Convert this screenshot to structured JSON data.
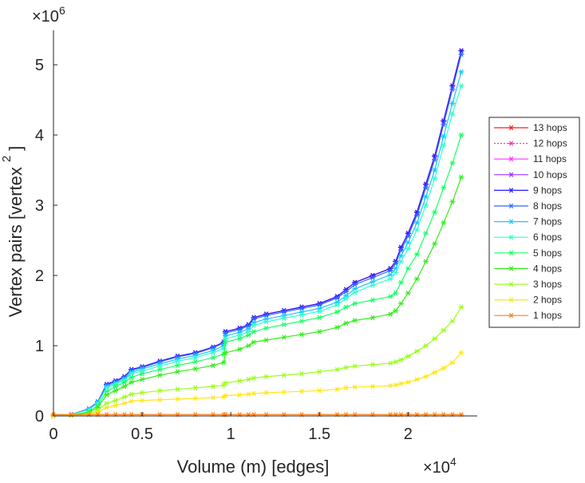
{
  "chart_data": {
    "type": "line",
    "title": "",
    "xlabel": "Volume (m) [edges]",
    "ylabel": "Vertex pairs [vertex",
    "ylabel_superscript": "2",
    "ylabel_close": "]",
    "x_multiplier": {
      "base": "×10",
      "exp": "4"
    },
    "y_multiplier": {
      "base": "×10",
      "exp": "6"
    },
    "xlim": [
      0,
      23900
    ],
    "ylim": [
      0,
      5.49
    ],
    "y_unit_scale": 1000000,
    "xticks": [
      0,
      5000,
      10000,
      15000,
      20000
    ],
    "xtick_labels": [
      "0",
      "0.5",
      "1",
      "1.5",
      "2"
    ],
    "yticks": [
      0,
      1,
      2,
      3,
      4,
      5
    ],
    "ytick_labels": [
      "0",
      "1",
      "2",
      "3",
      "4",
      "5"
    ],
    "grid": false,
    "legend_position": "right",
    "x": [
      0,
      1000,
      2000,
      2500,
      3000,
      3500,
      4000,
      4400,
      5000,
      6000,
      7000,
      8000,
      9000,
      9600,
      9700,
      10500,
      11000,
      11300,
      12000,
      13000,
      14000,
      15000,
      16000,
      16500,
      17000,
      18000,
      19000,
      19300,
      19600,
      20000,
      20500,
      21000,
      21500,
      22000,
      22500,
      23000
    ],
    "series": [
      {
        "name": "13 hops",
        "color": "#ff1a1a",
        "dash": "",
        "values": [
          0,
          0.02,
          0.1,
          0.2,
          0.45,
          0.5,
          0.56,
          0.66,
          0.7,
          0.78,
          0.85,
          0.9,
          0.98,
          1.05,
          1.2,
          1.25,
          1.3,
          1.4,
          1.45,
          1.5,
          1.55,
          1.6,
          1.7,
          1.8,
          1.9,
          2.0,
          2.1,
          2.2,
          2.4,
          2.6,
          2.9,
          3.3,
          3.7,
          4.2,
          4.7,
          5.2
        ]
      },
      {
        "name": "12 hops",
        "color": "#ff3399",
        "dash": "2,2",
        "values": [
          0,
          0.02,
          0.1,
          0.2,
          0.45,
          0.5,
          0.56,
          0.66,
          0.7,
          0.78,
          0.85,
          0.9,
          0.98,
          1.05,
          1.2,
          1.25,
          1.3,
          1.4,
          1.45,
          1.5,
          1.55,
          1.6,
          1.7,
          1.8,
          1.9,
          2.0,
          2.1,
          2.2,
          2.4,
          2.6,
          2.9,
          3.3,
          3.7,
          4.2,
          4.7,
          5.2
        ]
      },
      {
        "name": "11 hops",
        "color": "#ff33ff",
        "dash": "",
        "values": [
          0,
          0.02,
          0.1,
          0.2,
          0.45,
          0.5,
          0.56,
          0.66,
          0.7,
          0.78,
          0.85,
          0.9,
          0.98,
          1.05,
          1.2,
          1.25,
          1.3,
          1.4,
          1.45,
          1.5,
          1.55,
          1.6,
          1.7,
          1.8,
          1.9,
          2.0,
          2.1,
          2.2,
          2.4,
          2.6,
          2.9,
          3.3,
          3.7,
          4.2,
          4.7,
          5.2
        ]
      },
      {
        "name": "10 hops",
        "color": "#9933ff",
        "dash": "",
        "values": [
          0,
          0.02,
          0.1,
          0.2,
          0.45,
          0.5,
          0.56,
          0.66,
          0.7,
          0.78,
          0.85,
          0.9,
          0.98,
          1.05,
          1.2,
          1.25,
          1.3,
          1.4,
          1.45,
          1.5,
          1.55,
          1.6,
          1.7,
          1.8,
          1.9,
          2.0,
          2.1,
          2.2,
          2.4,
          2.6,
          2.9,
          3.3,
          3.7,
          4.2,
          4.7,
          5.2
        ]
      },
      {
        "name": "9 hops",
        "color": "#2a1aff",
        "dash": "",
        "values": [
          0,
          0.02,
          0.1,
          0.2,
          0.45,
          0.5,
          0.56,
          0.66,
          0.7,
          0.78,
          0.85,
          0.9,
          0.98,
          1.05,
          1.2,
          1.25,
          1.3,
          1.4,
          1.45,
          1.5,
          1.55,
          1.6,
          1.7,
          1.8,
          1.9,
          2.0,
          2.1,
          2.2,
          2.4,
          2.6,
          2.9,
          3.3,
          3.7,
          4.2,
          4.7,
          5.2
        ]
      },
      {
        "name": "8 hops",
        "color": "#3366ff",
        "dash": "",
        "values": [
          0,
          0.02,
          0.1,
          0.2,
          0.44,
          0.49,
          0.55,
          0.65,
          0.69,
          0.77,
          0.84,
          0.89,
          0.97,
          1.04,
          1.18,
          1.23,
          1.28,
          1.38,
          1.43,
          1.48,
          1.53,
          1.58,
          1.68,
          1.77,
          1.87,
          1.97,
          2.07,
          2.17,
          2.36,
          2.56,
          2.86,
          3.25,
          3.65,
          4.15,
          4.65,
          5.15
        ]
      },
      {
        "name": "7 hops",
        "color": "#1ac6ff",
        "dash": "",
        "values": [
          0,
          0.02,
          0.09,
          0.19,
          0.42,
          0.47,
          0.53,
          0.62,
          0.67,
          0.74,
          0.81,
          0.86,
          0.93,
          1.0,
          1.14,
          1.19,
          1.24,
          1.33,
          1.38,
          1.43,
          1.48,
          1.53,
          1.62,
          1.71,
          1.81,
          1.91,
          2.01,
          2.1,
          2.28,
          2.47,
          2.75,
          3.12,
          3.5,
          3.98,
          4.45,
          4.9
        ]
      },
      {
        "name": "6 hops",
        "color": "#33ffcc",
        "dash": "",
        "values": [
          0,
          0.02,
          0.09,
          0.18,
          0.4,
          0.45,
          0.51,
          0.6,
          0.64,
          0.71,
          0.78,
          0.83,
          0.9,
          0.96,
          1.1,
          1.15,
          1.2,
          1.29,
          1.34,
          1.39,
          1.44,
          1.49,
          1.58,
          1.67,
          1.76,
          1.86,
          1.95,
          2.04,
          2.2,
          2.38,
          2.65,
          3.0,
          3.38,
          3.85,
          4.3,
          4.7
        ]
      },
      {
        "name": "5 hops",
        "color": "#1aff66",
        "dash": "",
        "values": [
          0,
          0.01,
          0.06,
          0.15,
          0.35,
          0.42,
          0.48,
          0.55,
          0.6,
          0.66,
          0.72,
          0.77,
          0.83,
          0.88,
          1.05,
          1.1,
          1.15,
          1.2,
          1.25,
          1.3,
          1.35,
          1.4,
          1.48,
          1.55,
          1.6,
          1.65,
          1.7,
          1.75,
          1.9,
          2.1,
          2.3,
          2.6,
          2.9,
          3.25,
          3.6,
          4.0
        ]
      },
      {
        "name": "4 hops",
        "color": "#33ee1a",
        "dash": "",
        "values": [
          0,
          0.01,
          0.05,
          0.12,
          0.3,
          0.36,
          0.42,
          0.48,
          0.52,
          0.58,
          0.63,
          0.67,
          0.72,
          0.76,
          0.9,
          0.95,
          1.0,
          1.05,
          1.08,
          1.12,
          1.16,
          1.2,
          1.26,
          1.32,
          1.36,
          1.4,
          1.45,
          1.5,
          1.6,
          1.75,
          1.95,
          2.2,
          2.45,
          2.75,
          3.05,
          3.4
        ]
      },
      {
        "name": "3 hops",
        "color": "#99ff1a",
        "dash": "",
        "values": [
          0,
          0.01,
          0.03,
          0.08,
          0.18,
          0.22,
          0.27,
          0.31,
          0.33,
          0.36,
          0.38,
          0.4,
          0.42,
          0.44,
          0.47,
          0.5,
          0.52,
          0.54,
          0.56,
          0.58,
          0.6,
          0.63,
          0.66,
          0.69,
          0.71,
          0.73,
          0.75,
          0.77,
          0.8,
          0.85,
          0.92,
          1.0,
          1.1,
          1.22,
          1.35,
          1.55
        ]
      },
      {
        "name": "2 hops",
        "color": "#ffe61a",
        "dash": "",
        "values": [
          0,
          0.005,
          0.02,
          0.05,
          0.12,
          0.15,
          0.18,
          0.21,
          0.22,
          0.23,
          0.24,
          0.25,
          0.26,
          0.27,
          0.29,
          0.3,
          0.31,
          0.32,
          0.33,
          0.34,
          0.35,
          0.36,
          0.38,
          0.4,
          0.41,
          0.42,
          0.43,
          0.44,
          0.46,
          0.48,
          0.52,
          0.56,
          0.62,
          0.68,
          0.76,
          0.9
        ]
      },
      {
        "name": "1 hops",
        "color": "#ff801a",
        "dash": "",
        "values": [
          0.02,
          0.02,
          0.02,
          0.02,
          0.02,
          0.02,
          0.02,
          0.02,
          0.02,
          0.02,
          0.02,
          0.02,
          0.02,
          0.02,
          0.02,
          0.02,
          0.02,
          0.02,
          0.02,
          0.02,
          0.02,
          0.02,
          0.02,
          0.02,
          0.02,
          0.02,
          0.02,
          0.02,
          0.02,
          0.02,
          0.02,
          0.02,
          0.02,
          0.02,
          0.02,
          0.02
        ]
      }
    ]
  }
}
